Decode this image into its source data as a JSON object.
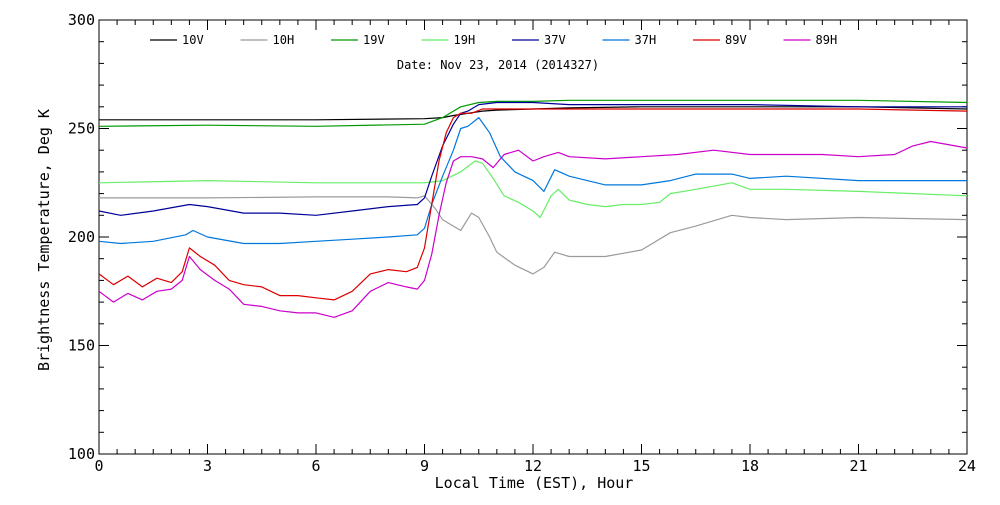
{
  "chart_data": {
    "type": "line",
    "subtitle": "Date: Nov 23, 2014 (2014327)",
    "xlabel": "Local Time (EST), Hour",
    "ylabel": "Brightness Temperature, Deg K",
    "xlim": [
      0,
      24
    ],
    "ylim": [
      100,
      300
    ],
    "xticks": [
      0,
      3,
      6,
      9,
      12,
      15,
      18,
      21,
      24
    ],
    "yticks": [
      100,
      150,
      200,
      250,
      300
    ],
    "xtick_labels": [
      "0",
      "3",
      "6",
      "9",
      "12",
      "15",
      "18",
      "21",
      "24"
    ],
    "ytick_labels": [
      "100",
      "150",
      "200",
      "250",
      "300"
    ],
    "legend_position": "top",
    "grid": false,
    "series": [
      {
        "name": "10V",
        "color": "#000000",
        "x": [
          0,
          3,
          6,
          9,
          9.5,
          9.8,
          10.2,
          10.6,
          11,
          12,
          13,
          15,
          18,
          21,
          24
        ],
        "y": [
          254,
          254,
          254,
          254.5,
          255,
          256,
          257,
          258,
          258.5,
          259,
          259.5,
          260,
          260,
          260,
          259
        ]
      },
      {
        "name": "10H",
        "color": "#9b9b9b",
        "x": [
          0,
          3,
          6,
          8,
          8.8,
          9.0,
          9.3,
          9.5,
          9.7,
          10.0,
          10.3,
          10.5,
          10.8,
          11.0,
          11.5,
          12.0,
          12.3,
          12.6,
          13.0,
          14.0,
          15.0,
          15.8,
          16.5,
          17.5,
          18.0,
          19.0,
          21.0,
          24.0
        ],
        "y": [
          218,
          218,
          218.5,
          218.5,
          218,
          219,
          213,
          208,
          206,
          203,
          211,
          209,
          200,
          193,
          187,
          183,
          186,
          193,
          191,
          191,
          194,
          202,
          205,
          210,
          209,
          208,
          209,
          208
        ]
      },
      {
        "name": "19V",
        "color": "#009900",
        "x": [
          0,
          3,
          6,
          9,
          9.5,
          10.0,
          10.5,
          11,
          12,
          13,
          15,
          18,
          21,
          24
        ],
        "y": [
          251,
          251.5,
          251,
          252,
          255,
          260,
          262,
          262.5,
          262.5,
          263,
          263,
          263,
          263,
          262
        ]
      },
      {
        "name": "19H",
        "color": "#66ee66",
        "x": [
          0,
          3,
          6,
          8,
          9.0,
          9.5,
          10.0,
          10.4,
          10.6,
          10.9,
          11.2,
          11.6,
          12.0,
          12.2,
          12.5,
          12.7,
          13.0,
          13.5,
          14.0,
          14.5,
          15.0,
          15.5,
          15.8,
          16.5,
          17.5,
          18.0,
          19.0,
          21.0,
          24.0
        ],
        "y": [
          225,
          226,
          225,
          225,
          225,
          226,
          230,
          235,
          234,
          227,
          219,
          216,
          212,
          209,
          219,
          222,
          217,
          215,
          214,
          215,
          215,
          216,
          220,
          222,
          225,
          222,
          222,
          221,
          219
        ]
      },
      {
        "name": "37V",
        "color": "#000099",
        "x": [
          0,
          0.6,
          1.5,
          2.5,
          3.0,
          4.0,
          5.0,
          6.0,
          7.0,
          8.0,
          8.8,
          9.0,
          9.2,
          9.5,
          9.8,
          10.0,
          10.2,
          10.5,
          11.0,
          12.0,
          13.0,
          15.0,
          18.0,
          21.0,
          24.0
        ],
        "y": [
          212,
          210,
          212,
          215,
          214,
          211,
          211,
          210,
          212,
          214,
          215,
          218,
          228,
          242,
          252,
          257,
          258,
          261,
          262,
          262,
          261,
          261,
          261,
          260,
          260
        ]
      },
      {
        "name": "37H",
        "color": "#0077dd",
        "x": [
          0,
          0.6,
          1.5,
          2.4,
          2.6,
          3.0,
          4.0,
          5.0,
          6.0,
          7.0,
          8.0,
          8.8,
          9.0,
          9.2,
          9.5,
          9.8,
          10.0,
          10.2,
          10.5,
          10.8,
          11.1,
          11.5,
          12.0,
          12.3,
          12.6,
          13.0,
          14.0,
          15.0,
          15.8,
          16.5,
          17.5,
          18.0,
          19.0,
          21.0,
          24.0
        ],
        "y": [
          198,
          197,
          198,
          201,
          203,
          200,
          197,
          197,
          198,
          199,
          200,
          201,
          204,
          215,
          228,
          240,
          250,
          251,
          255,
          248,
          237,
          230,
          226,
          221,
          231,
          228,
          224,
          224,
          226,
          229,
          229,
          227,
          228,
          226,
          226
        ]
      },
      {
        "name": "89V",
        "color": "#dd0000",
        "x": [
          0,
          0.4,
          0.8,
          1.2,
          1.6,
          2.0,
          2.3,
          2.5,
          2.8,
          3.2,
          3.6,
          4.0,
          4.5,
          5.0,
          5.5,
          6.0,
          6.5,
          7.0,
          7.5,
          8.0,
          8.5,
          8.8,
          9.0,
          9.2,
          9.4,
          9.6,
          9.8,
          10.0,
          10.3,
          10.6,
          11.0,
          12.0,
          13.0,
          15.0,
          18.0,
          21.0,
          24.0
        ],
        "y": [
          183,
          178,
          182,
          177,
          181,
          179,
          184,
          195,
          191,
          187,
          180,
          178,
          177,
          173,
          173,
          172,
          171,
          175,
          183,
          185,
          184,
          186,
          195,
          215,
          235,
          248,
          255,
          257,
          257,
          259,
          259,
          259,
          259,
          259,
          259,
          259,
          258
        ]
      },
      {
        "name": "89H",
        "color": "#cc00cc",
        "x": [
          0,
          0.4,
          0.8,
          1.2,
          1.6,
          2.0,
          2.3,
          2.5,
          2.8,
          3.2,
          3.6,
          4.0,
          4.5,
          5.0,
          5.5,
          6.0,
          6.5,
          7.0,
          7.5,
          8.0,
          8.5,
          8.8,
          9.0,
          9.2,
          9.4,
          9.6,
          9.8,
          10.0,
          10.3,
          10.6,
          10.9,
          11.2,
          11.6,
          12.0,
          12.3,
          12.7,
          13.0,
          14.0,
          15.0,
          16.0,
          17.0,
          18.0,
          19.0,
          20.0,
          21.0,
          22.0,
          22.5,
          23.0,
          24.0
        ],
        "y": [
          175,
          170,
          174,
          171,
          175,
          176,
          180,
          191,
          185,
          180,
          176,
          169,
          168,
          166,
          165,
          165,
          163,
          166,
          175,
          179,
          177,
          176,
          180,
          192,
          210,
          225,
          235,
          237,
          237,
          236,
          232,
          238,
          240,
          235,
          237,
          239,
          237,
          236,
          237,
          238,
          240,
          238,
          238,
          238,
          237,
          238,
          242,
          244,
          241
        ]
      }
    ]
  }
}
